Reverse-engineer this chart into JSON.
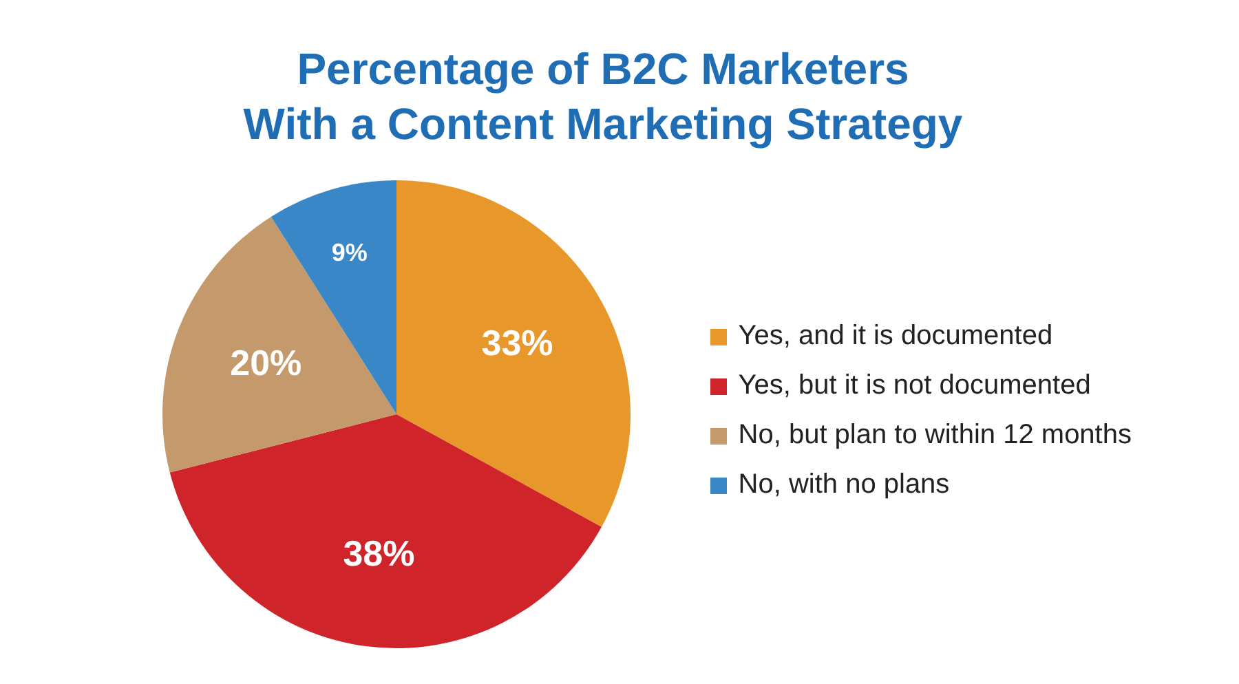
{
  "chart_data": {
    "type": "pie",
    "title": "Percentage of B2C Marketers\nWith a Content Marketing Strategy",
    "categories": [
      "Yes, and it is documented",
      "Yes, but it is not documented",
      "No, but plan to within 12 months",
      "No, with no plans"
    ],
    "values": [
      33,
      38,
      20,
      9
    ],
    "colors": [
      "#e8972a",
      "#d0242b",
      "#c49a6c",
      "#3a87c8"
    ],
    "value_labels": [
      "33%",
      "38%",
      "20%",
      "9%"
    ],
    "legend": "right"
  }
}
